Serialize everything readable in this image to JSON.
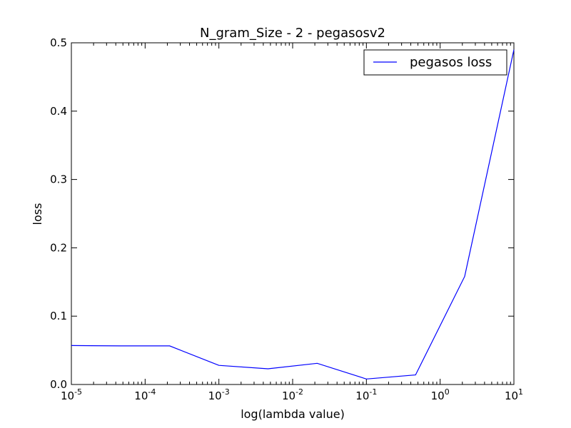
{
  "chart_data": {
    "type": "line",
    "title": "N_gram_Size - 2 - pegasosv2",
    "xlabel": "log(lambda value)",
    "ylabel": "loss",
    "x_scale": "log",
    "xlim": [
      1e-05,
      10
    ],
    "ylim": [
      0.0,
      0.5
    ],
    "x_tick_labels": [
      {
        "base": "10",
        "exp": "-5"
      },
      {
        "base": "10",
        "exp": "-4"
      },
      {
        "base": "10",
        "exp": "-3"
      },
      {
        "base": "10",
        "exp": "-2"
      },
      {
        "base": "10",
        "exp": "-1"
      },
      {
        "base": "10",
        "exp": "0"
      },
      {
        "base": "10",
        "exp": "1"
      }
    ],
    "x_ticks": [
      1e-05,
      0.0001,
      0.001,
      0.01,
      0.1,
      1,
      10
    ],
    "y_ticks": [
      0.0,
      0.1,
      0.2,
      0.3,
      0.4,
      0.5
    ],
    "y_tick_labels": [
      "0.0",
      "0.1",
      "0.2",
      "0.3",
      "0.4",
      "0.5"
    ],
    "legend_position": "top-right",
    "grid": false,
    "series": [
      {
        "name": "pegasos loss",
        "color": "#0000ff",
        "x": [
          1e-05,
          4.64e-05,
          0.000215,
          0.001,
          0.00464,
          0.0215,
          0.1,
          0.464,
          2.15,
          10
        ],
        "y": [
          0.057,
          0.0565,
          0.0565,
          0.028,
          0.023,
          0.031,
          0.008,
          0.014,
          0.158,
          0.49
        ]
      }
    ]
  }
}
